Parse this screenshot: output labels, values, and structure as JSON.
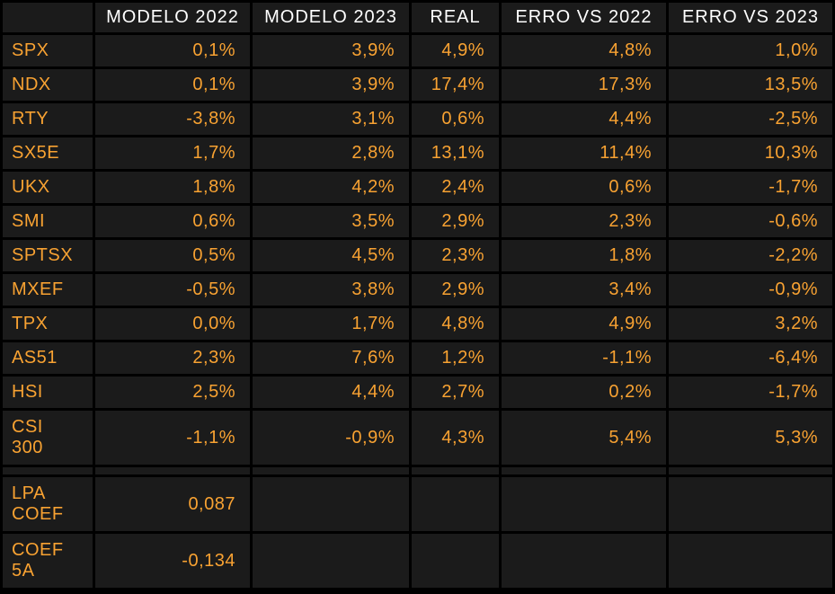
{
  "colors": {
    "background": "#000000",
    "cell_background": "#1b1b1b",
    "header_text": "#ffffff",
    "accent_text": "#f8a232"
  },
  "table": {
    "columns": [
      "",
      "MODELO 2022",
      "MODELO 2023",
      "REAL",
      "ERRO VS 2022",
      "ERRO VS 2023"
    ],
    "rows": [
      {
        "label": "SPX",
        "values": [
          "0,1%",
          "3,9%",
          "4,9%",
          "4,8%",
          "1,0%"
        ]
      },
      {
        "label": "NDX",
        "values": [
          "0,1%",
          "3,9%",
          "17,4%",
          "17,3%",
          "13,5%"
        ]
      },
      {
        "label": "RTY",
        "values": [
          "-3,8%",
          "3,1%",
          "0,6%",
          "4,4%",
          "-2,5%"
        ]
      },
      {
        "label": "SX5E",
        "values": [
          "1,7%",
          "2,8%",
          "13,1%",
          "11,4%",
          "10,3%"
        ]
      },
      {
        "label": "UKX",
        "values": [
          "1,8%",
          "4,2%",
          "2,4%",
          "0,6%",
          "-1,7%"
        ]
      },
      {
        "label": "SMI",
        "values": [
          "0,6%",
          "3,5%",
          "2,9%",
          "2,3%",
          "-0,6%"
        ]
      },
      {
        "label": "SPTSX",
        "values": [
          "0,5%",
          "4,5%",
          "2,3%",
          "1,8%",
          "-2,2%"
        ]
      },
      {
        "label": "MXEF",
        "values": [
          "-0,5%",
          "3,8%",
          "2,9%",
          "3,4%",
          "-0,9%"
        ]
      },
      {
        "label": "TPX",
        "values": [
          "0,0%",
          "1,7%",
          "4,8%",
          "4,9%",
          "3,2%"
        ]
      },
      {
        "label": "AS51",
        "values": [
          "2,3%",
          "7,6%",
          "1,2%",
          "-1,1%",
          "-6,4%"
        ]
      },
      {
        "label": "HSI",
        "values": [
          "2,5%",
          "4,4%",
          "2,7%",
          "0,2%",
          "-1,7%"
        ]
      },
      {
        "label": "CSI 300",
        "values": [
          "-1,1%",
          "-0,9%",
          "4,3%",
          "5,4%",
          "5,3%"
        ]
      }
    ],
    "footer_rows": [
      {
        "label": "LPA COEF",
        "values": [
          "0,087",
          "",
          "",
          "",
          ""
        ]
      },
      {
        "label": "COEF 5A",
        "values": [
          "-0,134",
          "",
          "",
          "",
          ""
        ]
      }
    ]
  },
  "chart_data": {
    "type": "table",
    "title": "",
    "columns": [
      "",
      "MODELO 2022",
      "MODELO 2023",
      "REAL",
      "ERRO VS 2022",
      "ERRO VS 2023"
    ],
    "rows": [
      [
        "SPX",
        "0,1%",
        "3,9%",
        "4,9%",
        "4,8%",
        "1,0%"
      ],
      [
        "NDX",
        "0,1%",
        "3,9%",
        "17,4%",
        "17,3%",
        "13,5%"
      ],
      [
        "RTY",
        "-3,8%",
        "3,1%",
        "0,6%",
        "4,4%",
        "-2,5%"
      ],
      [
        "SX5E",
        "1,7%",
        "2,8%",
        "13,1%",
        "11,4%",
        "10,3%"
      ],
      [
        "UKX",
        "1,8%",
        "4,2%",
        "2,4%",
        "0,6%",
        "-1,7%"
      ],
      [
        "SMI",
        "0,6%",
        "3,5%",
        "2,9%",
        "2,3%",
        "-0,6%"
      ],
      [
        "SPTSX",
        "0,5%",
        "4,5%",
        "2,3%",
        "1,8%",
        "-2,2%"
      ],
      [
        "MXEF",
        "-0,5%",
        "3,8%",
        "2,9%",
        "3,4%",
        "-0,9%"
      ],
      [
        "TPX",
        "0,0%",
        "1,7%",
        "4,8%",
        "4,9%",
        "3,2%"
      ],
      [
        "AS51",
        "2,3%",
        "7,6%",
        "1,2%",
        "-1,1%",
        "-6,4%"
      ],
      [
        "HSI",
        "2,5%",
        "4,4%",
        "2,7%",
        "0,2%",
        "-1,7%"
      ],
      [
        "CSI 300",
        "-1,1%",
        "-0,9%",
        "4,3%",
        "5,4%",
        "5,3%"
      ],
      [
        "LPA COEF",
        "0,087",
        "",
        "",
        "",
        ""
      ],
      [
        "COEF 5A",
        "-0,134",
        "",
        "",
        "",
        ""
      ]
    ]
  }
}
